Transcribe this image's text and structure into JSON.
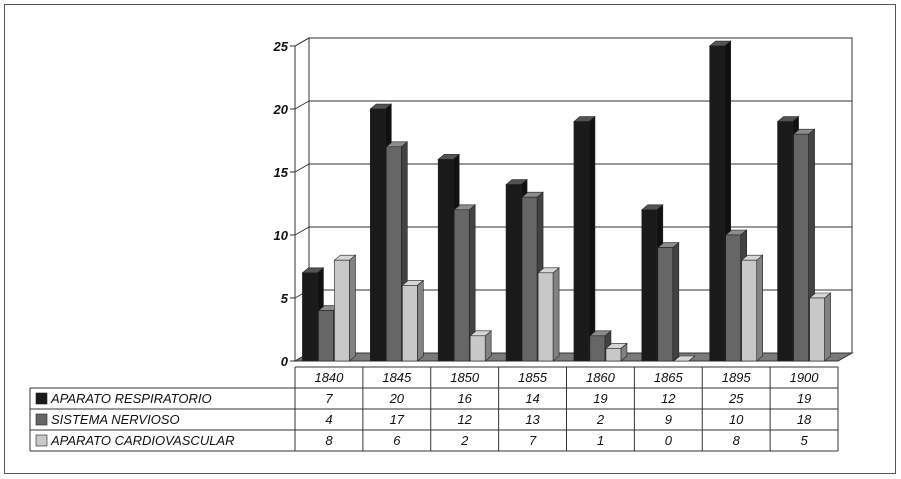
{
  "chart_data": {
    "type": "bar",
    "categories": [
      "1840",
      "1845",
      "1850",
      "1855",
      "1860",
      "1865",
      "1895",
      "1900"
    ],
    "series": [
      {
        "name": "APARATO RESPIRATORIO",
        "values": [
          7,
          20,
          16,
          14,
          19,
          12,
          25,
          19
        ],
        "color": "#1a1a1a"
      },
      {
        "name": "SISTEMA NERVIOSO",
        "values": [
          4,
          17,
          12,
          13,
          2,
          9,
          10,
          18
        ],
        "color": "#666666"
      },
      {
        "name": "APARATO CARDIOVASCULAR",
        "values": [
          8,
          6,
          2,
          7,
          1,
          0,
          8,
          5
        ],
        "color": "#c8c8c8"
      }
    ],
    "y_ticks": [
      0,
      5,
      10,
      15,
      20,
      25
    ],
    "ylim": [
      0,
      25
    ],
    "grid": true,
    "legend": "data-table-below",
    "title": "",
    "xlabel": "",
    "ylabel": ""
  }
}
